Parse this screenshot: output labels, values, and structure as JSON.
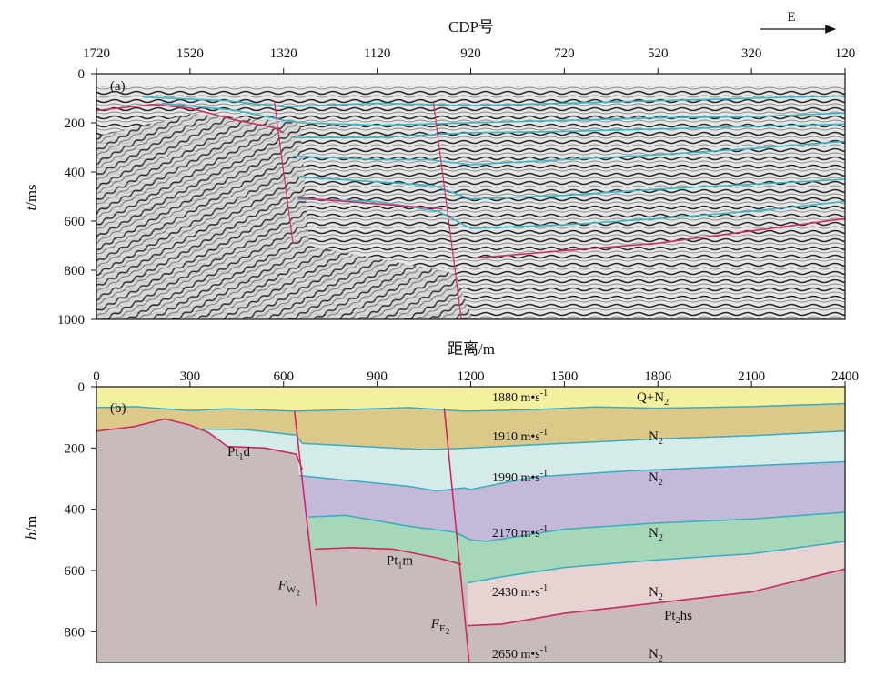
{
  "chart_data": [
    {
      "panel": "(a)",
      "type": "seismic-section",
      "xlabel": "CDP号",
      "ylabel_var": "t",
      "ylabel_unit": "/ms",
      "direction_label": "E",
      "x_ticks": [
        "1720",
        "1520",
        "1320",
        "1120",
        "920",
        "720",
        "520",
        "320",
        "120"
      ],
      "y_ticks": [
        "0",
        "200",
        "400",
        "600",
        "800",
        "1000"
      ],
      "xlim": [
        1720,
        120
      ],
      "ylim": [
        0,
        1000
      ],
      "horizons": [
        {
          "color": "cyan",
          "points": [
            [
              1620,
              95
            ],
            [
              1440,
              110
            ],
            [
              1320,
              135
            ],
            [
              1120,
              120
            ],
            [
              920,
              130
            ],
            [
              720,
              120
            ],
            [
              520,
              110
            ],
            [
              320,
              100
            ],
            [
              120,
              90
            ]
          ]
        },
        {
          "color": "cyan",
          "points": [
            [
              1580,
              120
            ],
            [
              1420,
              150
            ],
            [
              1320,
              190
            ],
            [
              1280,
              200
            ],
            [
              1120,
              210
            ],
            [
              920,
              200
            ],
            [
              720,
              190
            ],
            [
              520,
              180
            ],
            [
              320,
              175
            ],
            [
              120,
              160
            ]
          ]
        },
        {
          "color": "cyan",
          "points": [
            [
              1300,
              260
            ],
            [
              1120,
              260
            ],
            [
              920,
              240
            ],
            [
              720,
              235
            ],
            [
              520,
              225
            ],
            [
              320,
              215
            ],
            [
              120,
              205
            ]
          ]
        },
        {
          "color": "cyan",
          "points": [
            [
              1300,
              335
            ],
            [
              1120,
              350
            ],
            [
              1010,
              350
            ],
            [
              920,
              370
            ],
            [
              720,
              350
            ],
            [
              520,
              330
            ],
            [
              320,
              305
            ],
            [
              120,
              275
            ]
          ]
        },
        {
          "color": "cyan",
          "points": [
            [
              1290,
              420
            ],
            [
              1120,
              440
            ],
            [
              1000,
              455
            ],
            [
              920,
              510
            ],
            [
              720,
              495
            ],
            [
              520,
              470
            ],
            [
              320,
              450
            ],
            [
              120,
              430
            ]
          ]
        },
        {
          "color": "cyan",
          "points": [
            [
              1290,
              510
            ],
            [
              1120,
              520
            ],
            [
              990,
              560
            ],
            [
              920,
              630
            ],
            [
              720,
              615
            ],
            [
              520,
              590
            ],
            [
              320,
              560
            ],
            [
              120,
              520
            ]
          ]
        },
        {
          "color": "magenta",
          "points": [
            [
              1720,
              150
            ],
            [
              1600,
              125
            ],
            [
              1520,
              140
            ],
            [
              1420,
              190
            ],
            [
              1340,
              220
            ],
            [
              1320,
              240
            ]
          ]
        },
        {
          "color": "magenta",
          "points": [
            [
              1290,
              505
            ],
            [
              1120,
              530
            ],
            [
              980,
              550
            ]
          ]
        },
        {
          "color": "magenta",
          "points": [
            [
              910,
              750
            ],
            [
              720,
              720
            ],
            [
              520,
              690
            ],
            [
              320,
              640
            ],
            [
              120,
              590
            ]
          ]
        }
      ],
      "faults": [
        {
          "points": [
            [
              1340,
              110
            ],
            [
              1300,
              690
            ]
          ]
        },
        {
          "points": [
            [
              1000,
              115
            ],
            [
              940,
              1000
            ]
          ]
        }
      ]
    },
    {
      "panel": "(b)",
      "type": "geologic-cross-section",
      "xlabel": "距离/m",
      "ylabel_var": "h",
      "ylabel_unit": "/m",
      "x_ticks": [
        "0",
        "300",
        "600",
        "900",
        "1200",
        "1500",
        "1800",
        "2100",
        "2400"
      ],
      "y_ticks": [
        "0",
        "200",
        "400",
        "600",
        "800"
      ],
      "xlim": [
        0,
        2400
      ],
      "ylim": [
        0,
        900
      ],
      "layers": [
        {
          "fill": "#f3f09e",
          "formation": "Q+N",
          "sub": "2",
          "velocity": "1880 m•s",
          "vexp": "-1",
          "top": [
            [
              0,
              0
            ],
            [
              2400,
              0
            ]
          ]
        },
        {
          "fill": "#dcc98a",
          "formation": "N",
          "sub": "2",
          "velocity": "1910 m•s",
          "vexp": "-1",
          "top": [
            [
              0,
              68
            ],
            [
              120,
              65
            ],
            [
              300,
              78
            ],
            [
              420,
              72
            ],
            [
              640,
              80
            ],
            [
              800,
              75
            ],
            [
              1000,
              68
            ],
            [
              1180,
              80
            ],
            [
              1400,
              75
            ],
            [
              1600,
              66
            ],
            [
              1800,
              70
            ],
            [
              2100,
              65
            ],
            [
              2400,
              55
            ]
          ]
        },
        {
          "fill": "#d5ebe9",
          "formation": "N",
          "sub": "2",
          "velocity": "1990 m•s",
          "vexp": "-1",
          "top": [
            [
              320,
              138
            ],
            [
              480,
              140
            ],
            [
              640,
              158
            ],
            [
              660,
              185
            ],
            [
              850,
              195
            ],
            [
              1050,
              205
            ],
            [
              1200,
              200
            ],
            [
              1500,
              185
            ],
            [
              1800,
              170
            ],
            [
              2100,
              160
            ],
            [
              2400,
              145
            ]
          ]
        },
        {
          "fill": "#c5b9d9",
          "formation": "N",
          "sub": "2",
          "velocity": "2170 m•s",
          "vexp": "-1",
          "top": [
            [
              650,
              290
            ],
            [
              850,
              310
            ],
            [
              1000,
              325
            ],
            [
              1090,
              340
            ],
            [
              1180,
              330
            ],
            [
              1200,
              335
            ],
            [
              1400,
              295
            ],
            [
              1700,
              275
            ],
            [
              2000,
              262
            ],
            [
              2400,
              245
            ]
          ]
        },
        {
          "fill": "#a6d7b9",
          "formation": "N",
          "sub": "2",
          "velocity": "2430 m•s",
          "vexp": "-1",
          "top": [
            [
              680,
              425
            ],
            [
              800,
              420
            ],
            [
              1000,
              455
            ],
            [
              1150,
              475
            ],
            [
              1200,
              500
            ],
            [
              1250,
              505
            ],
            [
              1500,
              465
            ],
            [
              1800,
              445
            ],
            [
              2100,
              432
            ],
            [
              2400,
              410
            ]
          ]
        },
        {
          "fill": "#e6d3d2",
          "formation": "N",
          "sub": "2",
          "velocity": "2650 m•s",
          "vexp": "-1",
          "top": [
            [
              1190,
              640
            ],
            [
              1300,
              620
            ],
            [
              1500,
              590
            ],
            [
              1800,
              565
            ],
            [
              2100,
              545
            ],
            [
              2400,
              505
            ]
          ]
        }
      ],
      "basement": {
        "fill": "#c8bcbb",
        "labels": [
          {
            "main": "Pt",
            "sub": "1",
            "tail": "d",
            "at": [
              420,
              225
            ]
          },
          {
            "main": "Pt",
            "sub": "1",
            "tail": "m",
            "at": [
              930,
              580
            ]
          },
          {
            "main": "Pt",
            "sub": "2",
            "tail": "hs",
            "at": [
              1820,
              760
            ]
          }
        ]
      },
      "faults": [
        {
          "label_main": "F",
          "label_sub": "W",
          "label_sub2": "2",
          "points": [
            [
              635,
              80
            ],
            [
              705,
              715
            ]
          ]
        },
        {
          "label_main": "F",
          "label_sub": "E",
          "label_sub2": "2",
          "points": [
            [
              1115,
              70
            ],
            [
              1195,
              900
            ]
          ]
        }
      ]
    }
  ]
}
